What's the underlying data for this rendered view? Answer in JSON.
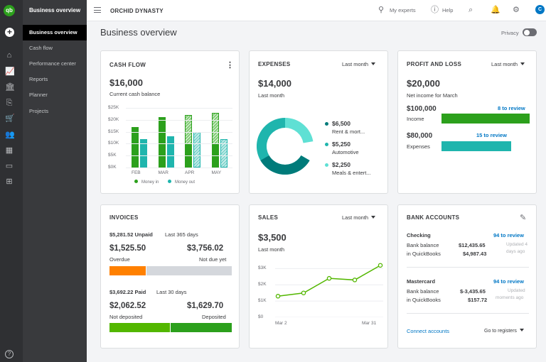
{
  "app": {
    "logo_text": "qb",
    "nav_title": "Business overview",
    "nav_items": [
      "Business overview",
      "Cash flow",
      "Performance center",
      "Reports",
      "Planner",
      "Projects"
    ],
    "company": "ORCHID DYNASTY",
    "my_experts": "My experts",
    "help": "Help",
    "avatar_letter": "C",
    "page_title": "Business overview",
    "privacy_label": "Privacy"
  },
  "cash_flow": {
    "title": "CASH FLOW",
    "amount": "$16,000",
    "caption": "Current cash balance",
    "y_ticks": [
      "$25K",
      "$20K",
      "$15K",
      "$10K",
      "$5K",
      "$0K"
    ],
    "legend_in": "Money in",
    "legend_out": "Money out",
    "chart_data": {
      "type": "bar",
      "categories": [
        "FEB",
        "MAR",
        "APR",
        "MAY"
      ],
      "ylim": [
        0,
        25
      ],
      "series": [
        {
          "name": "Money in",
          "values": [
            17,
            21,
            22,
            23
          ]
        },
        {
          "name": "Money out",
          "values": [
            12,
            13,
            15,
            12
          ]
        }
      ]
    }
  },
  "expenses": {
    "title": "EXPENSES",
    "period": "Last month",
    "amount": "$14,000",
    "caption": "Last month",
    "items": [
      {
        "amount": "$6,500",
        "label": "Rent & mort...",
        "color": "#007b7a"
      },
      {
        "amount": "$5,250",
        "label": "Automotive",
        "color": "#1fb5ad"
      },
      {
        "amount": "$2,250",
        "label": "Meals & entert...",
        "color": "#5fe0d4"
      }
    ]
  },
  "profit_loss": {
    "title": "PROFIT AND LOSS",
    "period": "Last month",
    "amount": "$20,000",
    "caption": "Net income for March",
    "income_amount": "$100,000",
    "income_label": "Income",
    "income_review": "8 to review",
    "expenses_amount": "$80,000",
    "expenses_label": "Expenses",
    "expenses_review": "15 to review"
  },
  "invoices": {
    "title": "INVOICES",
    "unpaid_amount": "$5,281.52 Unpaid",
    "unpaid_period": "Last 365 days",
    "overdue_amount": "$1,525.50",
    "overdue_label": "Overdue",
    "notdue_amount": "$3,756.02",
    "notdue_label": "Not due yet",
    "paid_amount": "$3,692.22 Paid",
    "paid_period": "Last 30 days",
    "notdeposited_amount": "$2,062.52",
    "notdeposited_label": "Not deposited",
    "deposited_amount": "$1,629.70",
    "deposited_label": "Deposited"
  },
  "sales": {
    "title": "SALES",
    "period": "Last month",
    "amount": "$3,500",
    "caption": "Last month",
    "y_ticks": [
      "$3K",
      "$2K",
      "$1K",
      "$0"
    ],
    "x_start": "Mar 2",
    "x_end": "Mar 31",
    "chart_data": {
      "type": "line",
      "ylim": [
        0,
        3.5
      ],
      "values": [
        1.3,
        1.5,
        2.4,
        2.3,
        3.2
      ]
    }
  },
  "bank": {
    "title": "BANK ACCOUNTS",
    "accounts": [
      {
        "name": "Checking",
        "review": "94 to review",
        "bank_label": "Bank balance",
        "bank_amount": "$12,435.65",
        "qb_label": "in QuickBooks",
        "qb_amount": "$4,987.43",
        "updated_1": "Updated 4",
        "updated_2": "days ago"
      },
      {
        "name": "Mastercard",
        "review": "94 to review",
        "bank_label": "Bank balance",
        "bank_amount": "$-3,435.65",
        "qb_label": "in QuickBooks",
        "qb_amount": "$157.72",
        "updated_1": "Updated",
        "updated_2": "moments ago"
      }
    ],
    "connect": "Connect accounts",
    "registers": "Go to registers"
  }
}
